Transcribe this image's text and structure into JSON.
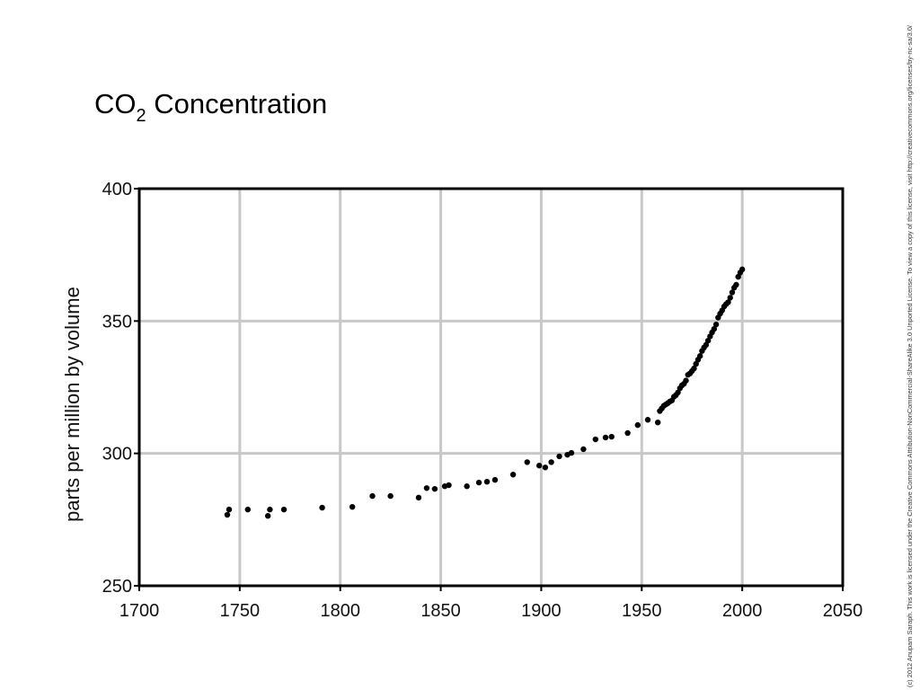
{
  "chart_data": {
    "type": "scatter",
    "title": [
      "CO",
      "2",
      " Concentration"
    ],
    "y_label": "parts per million by volume",
    "credit": "(c) 2012 Anupam Saraph. This work is licensed under the Creative Commons Attribution-NonCommercial-ShareAlike 3.0 Unported License. To view a copy of this license, visit http://creativecommons.org/licenses/by-nc-sa/3.0/",
    "x": [
      1743.8,
      1744.7,
      1754,
      1764,
      1765,
      1772,
      1791,
      1806,
      1816,
      1825,
      1839,
      1843,
      1847,
      1852,
      1854,
      1863,
      1869,
      1873,
      1877,
      1886,
      1893,
      1899,
      1902,
      1905,
      1909,
      1913,
      1915,
      1921,
      1927,
      1932,
      1935,
      1943,
      1948,
      1953,
      1958,
      1959,
      1960,
      1961,
      1962,
      1963,
      1964,
      1965,
      1966,
      1967,
      1968,
      1969,
      1970,
      1971,
      1972,
      1973,
      1974,
      1975,
      1976,
      1977,
      1978,
      1979,
      1980,
      1981,
      1982,
      1983,
      1984,
      1985,
      1986,
      1987,
      1988,
      1989,
      1990,
      1991,
      1992,
      1993,
      1994,
      1995,
      1996,
      1997,
      1998,
      1999,
      2000
    ],
    "values": [
      276.8,
      278.8,
      278.8,
      276.4,
      278.8,
      278.8,
      279.5,
      279.8,
      283.9,
      283.9,
      283.3,
      286.9,
      286.6,
      287.6,
      288,
      287.6,
      289,
      289.3,
      290,
      292,
      296.7,
      295.4,
      294.7,
      296.7,
      298.9,
      299.5,
      300.2,
      301.6,
      305.3,
      306,
      306.3,
      307.7,
      310.7,
      312.7,
      311.7,
      316,
      317,
      318,
      318.5,
      319,
      319.6,
      320,
      321.4,
      322,
      323,
      324.6,
      325.7,
      326.3,
      327.5,
      329.7,
      330.2,
      331.1,
      332.1,
      333.8,
      335.4,
      336.8,
      338.7,
      340,
      341,
      342.6,
      344.2,
      345.7,
      347,
      348.7,
      351.3,
      352.8,
      354,
      355.5,
      356.4,
      357.1,
      358.8,
      360.8,
      362.6,
      363.7,
      366.7,
      368.3,
      369.5
    ],
    "color": "#000000",
    "xlim": [
      1700,
      2050
    ],
    "xticks": [
      1700,
      1750,
      1800,
      1850,
      1900,
      1950,
      2000,
      2050
    ],
    "ylim": [
      250,
      400
    ],
    "yticks": [
      250,
      300,
      350,
      400
    ],
    "grid": true
  }
}
